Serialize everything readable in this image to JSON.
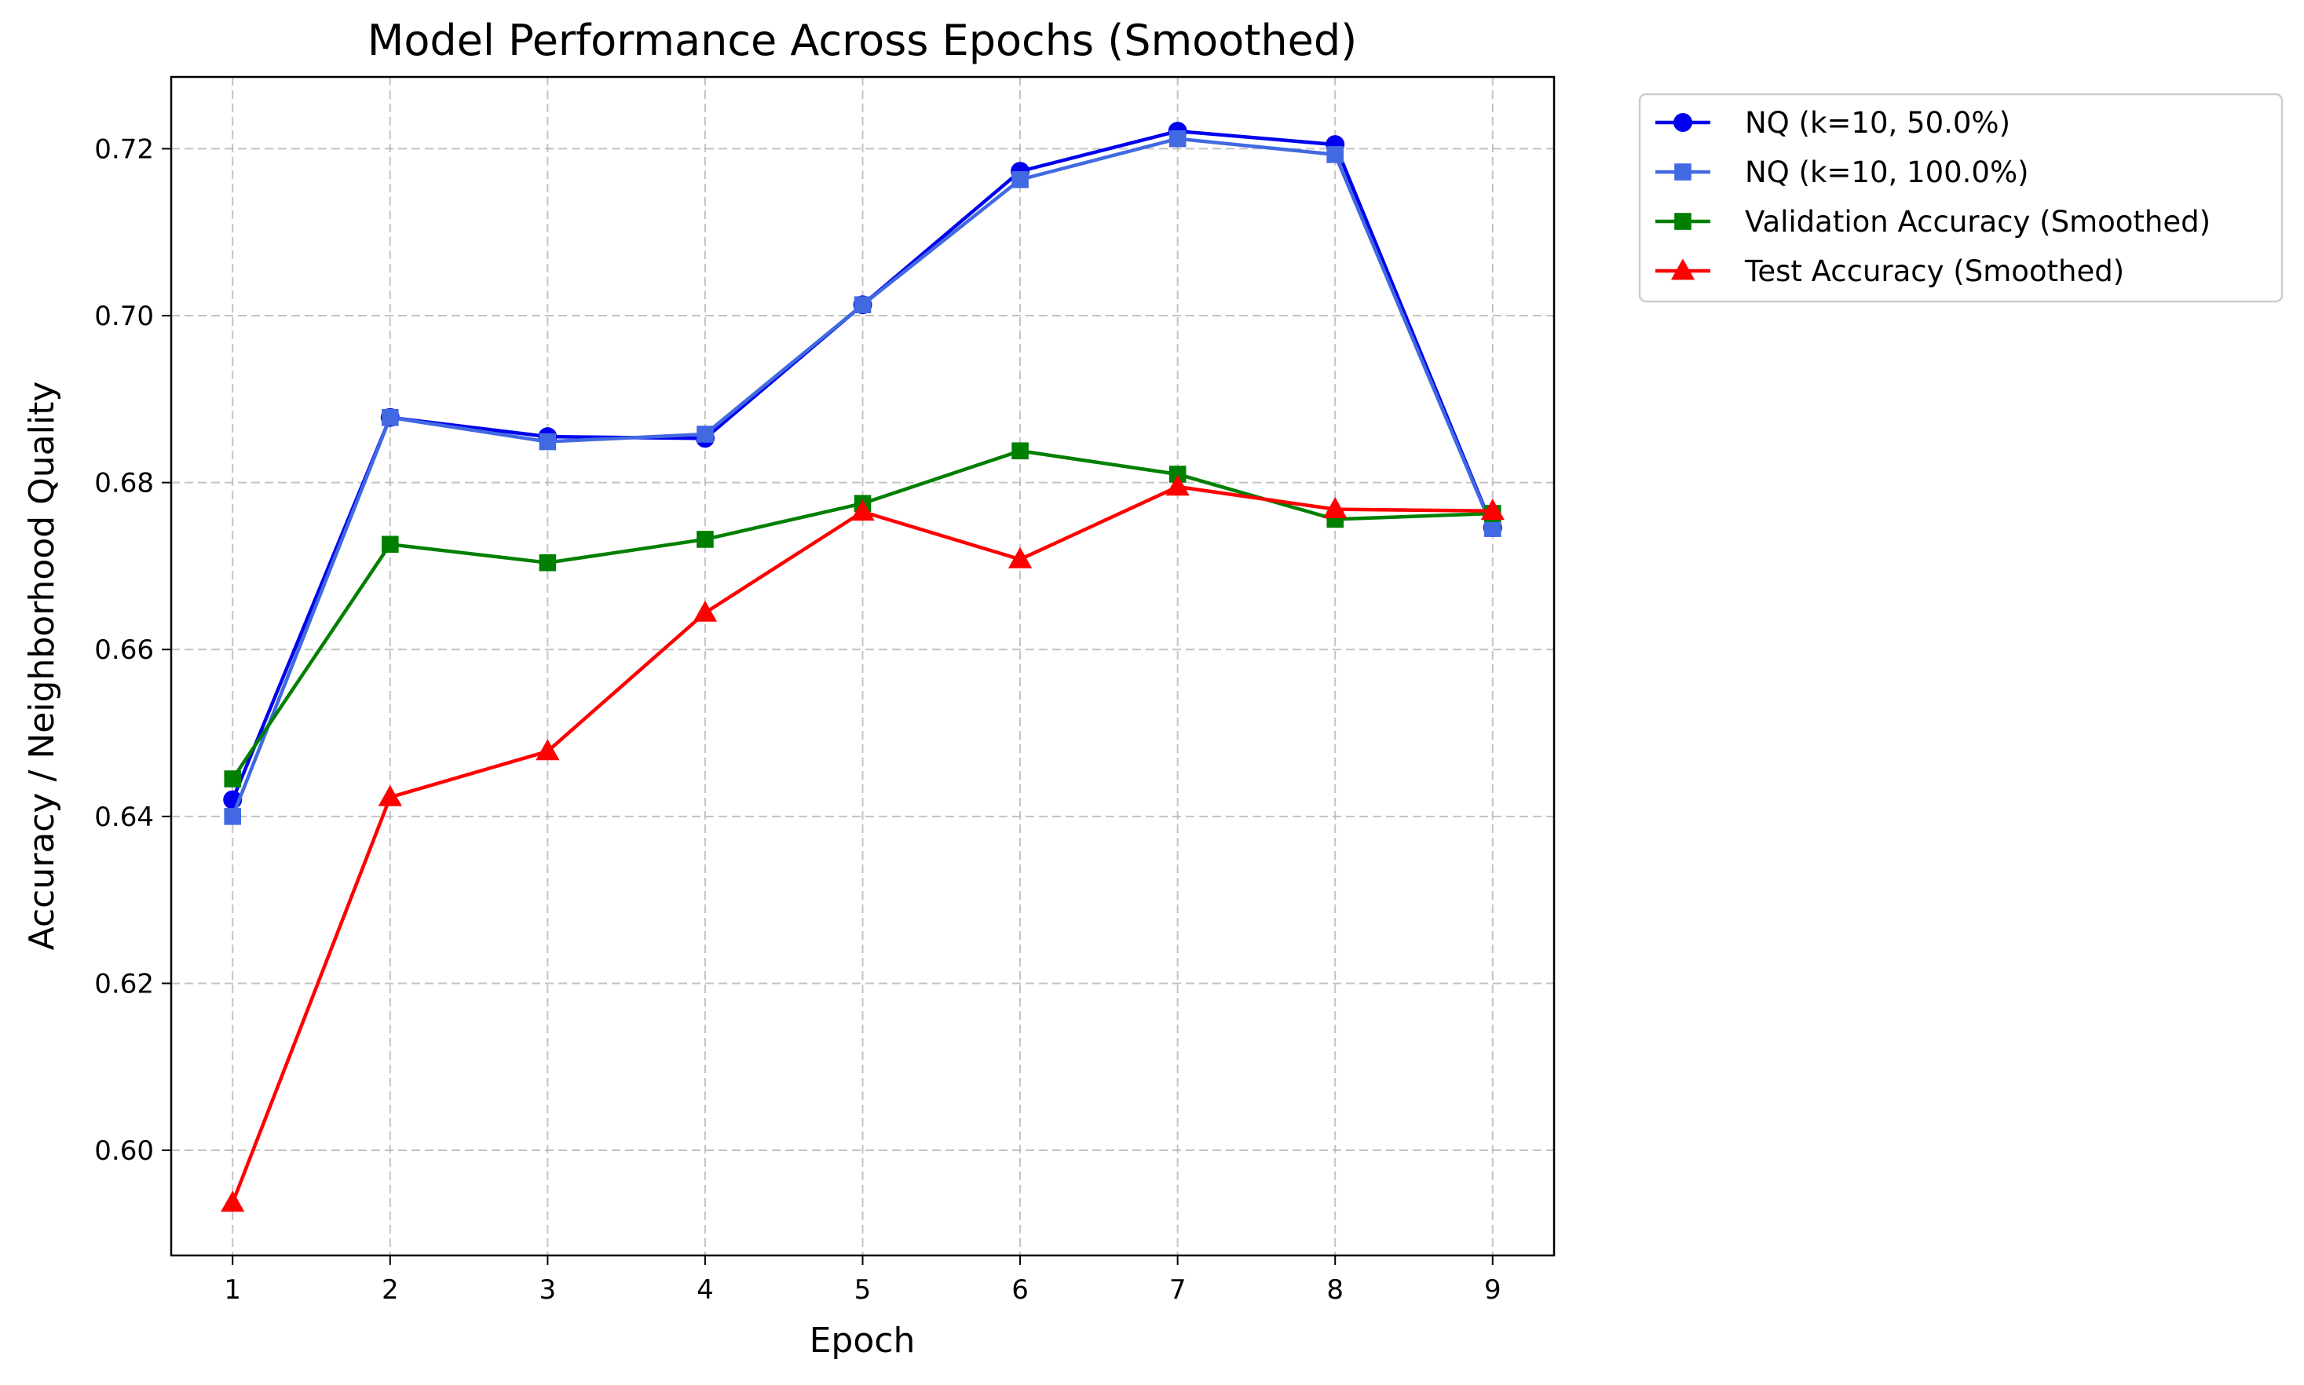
{
  "chart_data": {
    "type": "line",
    "title": "Model Performance Across Epochs (Smoothed)",
    "xlabel": "Epoch",
    "ylabel": "Accuracy / Neighborhood Quality",
    "x": [
      1,
      2,
      3,
      4,
      5,
      6,
      7,
      8,
      9
    ],
    "xlim": [
      0.61,
      9.39
    ],
    "ylim": [
      0.5874,
      0.7286
    ],
    "xticks": [
      "1",
      "2",
      "3",
      "4",
      "5",
      "6",
      "7",
      "8",
      "9"
    ],
    "yticks": [
      "0.60",
      "0.62",
      "0.64",
      "0.66",
      "0.68",
      "0.70",
      "0.72"
    ],
    "grid": true,
    "legend_position": "outside-top-right",
    "series": [
      {
        "name": "NQ (k=10, 50.0%)",
        "color": "#0000ee",
        "marker": "circle",
        "values": [
          0.642,
          0.6878,
          0.6855,
          0.6853,
          0.7013,
          0.7173,
          0.7221,
          0.7205,
          0.6746
        ]
      },
      {
        "name": "NQ (k=10, 100.0%)",
        "color": "#4169e1",
        "marker": "square",
        "values": [
          0.64,
          0.6878,
          0.6849,
          0.6858,
          0.7013,
          0.7163,
          0.7212,
          0.7193,
          0.6745
        ]
      },
      {
        "name": "Validation Accuracy (Smoothed)",
        "color": "#007f00",
        "marker": "square",
        "values": [
          0.6445,
          0.6726,
          0.6704,
          0.6732,
          0.6775,
          0.6838,
          0.681,
          0.6756,
          0.6763
        ]
      },
      {
        "name": "Test Accuracy (Smoothed)",
        "color": "#ff0000",
        "marker": "triangle",
        "values": [
          0.5937,
          0.6423,
          0.6478,
          0.6644,
          0.6765,
          0.6708,
          0.6795,
          0.6768,
          0.6766
        ]
      }
    ]
  }
}
